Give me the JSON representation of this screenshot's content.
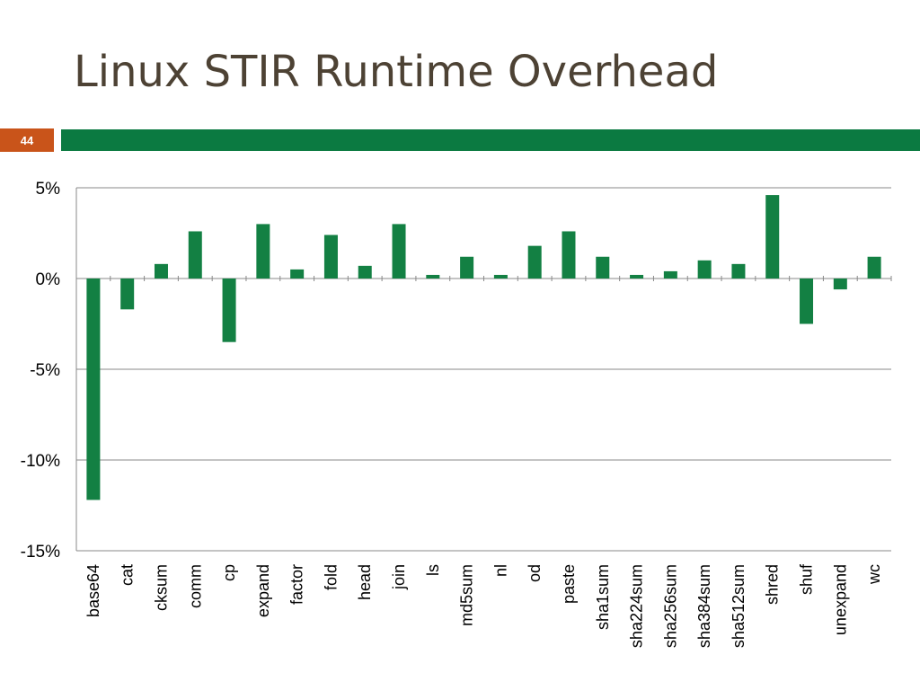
{
  "slide": {
    "title": "Linux STIR Runtime Overhead",
    "page_number": "44"
  },
  "colors": {
    "title": "#4d4234",
    "page_box": "#c9541a",
    "rule_bar": "#0b7a41",
    "bar": "#138043",
    "grid": "#888888"
  },
  "chart_data": {
    "type": "bar",
    "title": "",
    "xlabel": "",
    "ylabel": "",
    "ylim": [
      -15,
      5
    ],
    "yticks": [
      5,
      0,
      -5,
      -10,
      -15
    ],
    "ytick_labels": [
      "5%",
      "0%",
      "-5%",
      "-10%",
      "-15%"
    ],
    "grid": true,
    "legend": "none",
    "categories": [
      "base64",
      "cat",
      "cksum",
      "comm",
      "cp",
      "expand",
      "factor",
      "fold",
      "head",
      "join",
      "ls",
      "md5sum",
      "nl",
      "od",
      "paste",
      "sha1sum",
      "sha224sum",
      "sha256sum",
      "sha384sum",
      "sha512sum",
      "shred",
      "shuf",
      "unexpand",
      "wc"
    ],
    "values": [
      -12.2,
      -1.7,
      0.8,
      2.6,
      -3.5,
      3.0,
      0.5,
      2.4,
      0.7,
      3.0,
      0.2,
      1.2,
      0.2,
      1.8,
      2.6,
      1.2,
      0.2,
      0.4,
      1.0,
      0.8,
      4.6,
      -2.5,
      -0.6,
      1.2
    ]
  }
}
